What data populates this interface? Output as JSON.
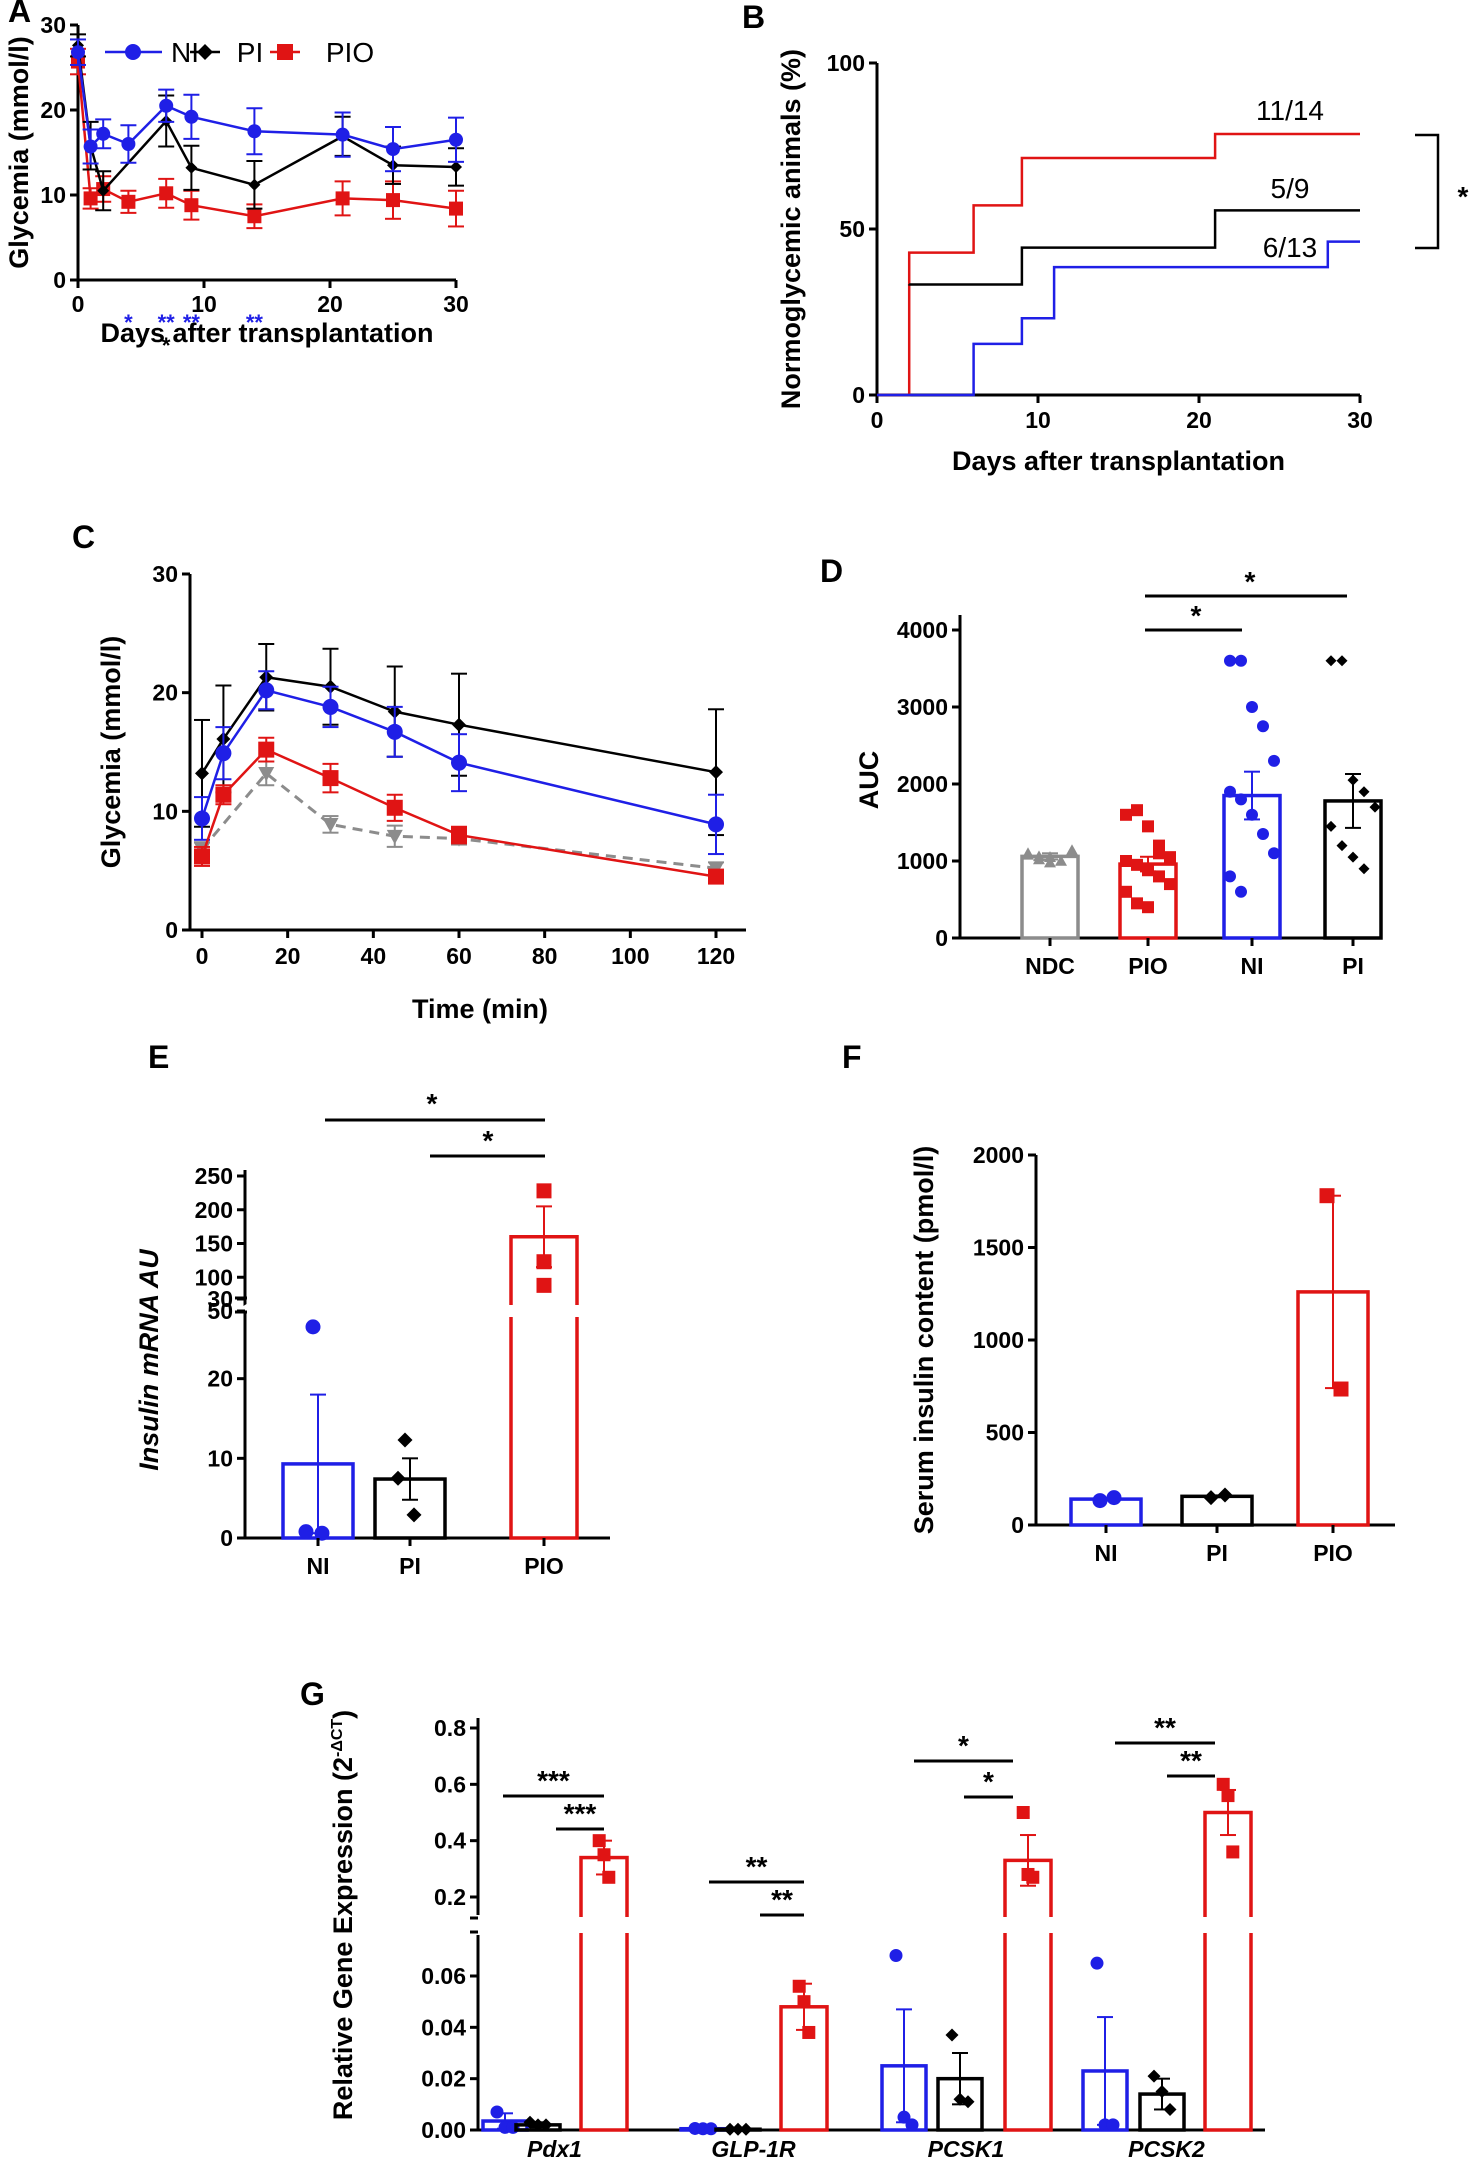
{
  "colors": {
    "NI": "#1f1fe6",
    "PI": "#000000",
    "PIO": "#e01414",
    "NDC": "#8c8c8c"
  },
  "chart_data": [
    {
      "id": "A",
      "panel_label": "A",
      "type": "line",
      "xlabel": "Days after transplantation",
      "ylabel": "Glycemia (mmol/l)",
      "xlim": [
        0,
        30
      ],
      "ylim": [
        0,
        30
      ],
      "xticks": [
        "0",
        "10",
        "20",
        "30"
      ],
      "yticks": [
        "0",
        "10",
        "20",
        "30"
      ],
      "series": [
        {
          "name": "NI",
          "color": "#1f1fe6",
          "marker": "circle",
          "x": [
            0,
            1,
            2,
            4,
            7,
            9,
            14,
            21,
            25,
            30
          ],
          "y": [
            26.8,
            15.7,
            17.2,
            16.0,
            20.5,
            19.2,
            17.5,
            17.1,
            15.4,
            16.5
          ],
          "err": [
            1.5,
            2.0,
            1.7,
            2.2,
            1.9,
            2.6,
            2.7,
            2.6,
            2.6,
            2.6
          ]
        },
        {
          "name": "PI",
          "color": "#000000",
          "marker": "diamond",
          "x": [
            0,
            1,
            2,
            7,
            9,
            14,
            21,
            25,
            30
          ],
          "y": [
            27.6,
            15.8,
            10.5,
            18.7,
            13.2,
            11.2,
            16.9,
            13.5,
            13.3
          ],
          "err": [
            1.3,
            2.8,
            2.3,
            3.0,
            2.6,
            2.8,
            2.3,
            2.2,
            2.2
          ]
        },
        {
          "name": "PIO",
          "color": "#e01414",
          "marker": "square",
          "x": [
            0,
            1,
            2,
            4,
            7,
            9,
            14,
            21,
            25,
            30
          ],
          "y": [
            25.7,
            9.6,
            10.7,
            9.2,
            10.2,
            8.8,
            7.5,
            9.6,
            9.4,
            8.4
          ],
          "err": [
            1.5,
            1.2,
            1.5,
            1.3,
            1.7,
            1.7,
            1.4,
            2.0,
            2.2,
            2.1
          ]
        }
      ],
      "annotations": [
        {
          "text": "*",
          "x": 4,
          "row": 1,
          "color": "#1f1fe6"
        },
        {
          "text": "**",
          "x": 7,
          "row": 1,
          "color": "#1f1fe6"
        },
        {
          "text": "**",
          "x": 9,
          "row": 1,
          "color": "#1f1fe6"
        },
        {
          "text": "**",
          "x": 14,
          "row": 1,
          "color": "#1f1fe6"
        },
        {
          "text": "*",
          "x": 7,
          "row": 2,
          "color": "#000000"
        }
      ],
      "legend": "top"
    },
    {
      "id": "B",
      "panel_label": "B",
      "type": "line",
      "xlabel": "Days after transplantation",
      "ylabel": "Normoglycemic animals (%)",
      "xlim": [
        0,
        30
      ],
      "ylim": [
        0,
        100
      ],
      "xticks": [
        "0",
        "10",
        "20",
        "30"
      ],
      "yticks": [
        "0",
        "50",
        "100"
      ],
      "series": [
        {
          "name": "PIO",
          "color": "#e01414",
          "label": "11/14",
          "x": [
            0,
            2,
            6,
            9,
            21,
            30
          ],
          "y": [
            0,
            42.9,
            57.1,
            71.4,
            78.6,
            78.6
          ]
        },
        {
          "name": "PI",
          "color": "#000000",
          "label": "5/9",
          "x": [
            2,
            9,
            21,
            30
          ],
          "y": [
            33.3,
            44.4,
            55.6,
            55.6
          ]
        },
        {
          "name": "NI",
          "color": "#1f1fe6",
          "label": "6/13",
          "x": [
            0,
            6,
            9,
            11,
            28,
            30
          ],
          "y": [
            0,
            15.4,
            23.1,
            38.5,
            46.2,
            46.2
          ]
        }
      ],
      "significance": "*"
    },
    {
      "id": "C",
      "panel_label": "C",
      "type": "line",
      "xlabel": "Time (min)",
      "ylabel": "Glycemia (mmol/l)",
      "xlim": [
        0,
        120
      ],
      "ylim": [
        0,
        30
      ],
      "xticks": [
        "0",
        "20",
        "40",
        "60",
        "80",
        "100",
        "120"
      ],
      "yticks": [
        "0",
        "10",
        "20",
        "30"
      ],
      "series": [
        {
          "group": "NDC",
          "color": "#8c8c8c",
          "marker": "triangle-down",
          "dashed": true,
          "x": [
            0,
            15,
            30,
            45,
            60,
            120
          ],
          "y": [
            6.8,
            13.2,
            8.9,
            7.9,
            7.7,
            5.2
          ],
          "err": [
            0.6,
            1.0,
            0.7,
            0.9,
            0.5,
            0.5
          ]
        },
        {
          "group": "PI",
          "color": "#000000",
          "marker": "diamond",
          "x": [
            0,
            5,
            15,
            30,
            45,
            60,
            120
          ],
          "y": [
            13.2,
            16.1,
            21.3,
            20.5,
            18.4,
            17.3,
            13.3
          ],
          "err": [
            4.5,
            4.5,
            2.8,
            3.2,
            3.8,
            4.3,
            5.3
          ]
        },
        {
          "group": "NI",
          "color": "#1f1fe6",
          "marker": "circle",
          "x": [
            0,
            5,
            15,
            30,
            45,
            60,
            120
          ],
          "y": [
            9.4,
            14.9,
            20.2,
            18.8,
            16.7,
            14.1,
            8.9
          ],
          "err": [
            1.8,
            2.2,
            1.6,
            1.7,
            2.1,
            2.4,
            2.5
          ]
        },
        {
          "group": "PIO",
          "color": "#e01414",
          "marker": "square",
          "x": [
            0,
            5,
            15,
            30,
            45,
            60,
            120
          ],
          "y": [
            6.2,
            11.4,
            15.2,
            12.8,
            10.3,
            8.0,
            4.5
          ],
          "err": [
            0.8,
            0.8,
            1.0,
            1.2,
            1.1,
            0.7,
            0.4
          ]
        }
      ]
    },
    {
      "id": "D",
      "panel_label": "D",
      "type": "bar",
      "xlabel": "",
      "ylabel": "AUC",
      "ylim": [
        0,
        4000
      ],
      "yticks": [
        "0",
        "1000",
        "2000",
        "3000",
        "4000"
      ],
      "categories": [
        "NDC",
        "PIO",
        "NI",
        "PI"
      ],
      "bar_colors": [
        "#8c8c8c",
        "#e01414",
        "#1f1fe6",
        "#000000"
      ],
      "markers": [
        "triangle-up",
        "square",
        "circle",
        "diamond"
      ],
      "values": [
        1060,
        960,
        1850,
        1780
      ],
      "sem": [
        40,
        95,
        310,
        350
      ],
      "points": [
        [
          1100,
          1060,
          980,
          1000,
          1140,
          1080,
          1020,
          1050
        ],
        [
          1600,
          1660,
          1450,
          1200,
          1050,
          1000,
          950,
          880,
          800,
          700,
          600,
          450,
          400,
          1100
        ],
        [
          3600,
          3600,
          3000,
          2750,
          2300,
          1900,
          1800,
          1600,
          1350,
          1100,
          800,
          600
        ],
        [
          3600,
          3600,
          2050,
          1900,
          1700,
          1450,
          1200,
          1050,
          900
        ]
      ],
      "brackets": [
        {
          "from": 1,
          "to": 2,
          "text": "*",
          "y": 4000
        },
        {
          "from": 1,
          "to": 3,
          "text": "*",
          "y": 4440
        }
      ]
    },
    {
      "id": "E",
      "panel_label": "E",
      "type": "bar",
      "xlabel": "",
      "ylabel": "Insulin mRNA AU",
      "y_axis_break": [
        30,
        50
      ],
      "ylim": [
        0,
        250
      ],
      "yticks": [
        "0",
        "10",
        "20",
        "30",
        "50",
        "100",
        "150",
        "200",
        "250"
      ],
      "categories": [
        "NI",
        "PI",
        "PIO"
      ],
      "bar_colors": [
        "#1f1fe6",
        "#000000",
        "#e01414"
      ],
      "markers": [
        "circle",
        "diamond",
        "square"
      ],
      "values": [
        9.3,
        7.4,
        160
      ],
      "sem": [
        8.7,
        2.6,
        45
      ],
      "points": [
        [
          26.5,
          0.8,
          0.6
        ],
        [
          12.3,
          7.5,
          2.9
        ],
        [
          228,
          123,
          88
        ]
      ],
      "brackets": [
        {
          "from": 0,
          "to": 2,
          "text": "*",
          "row": 2
        },
        {
          "from": 1,
          "to": 2,
          "text": "*",
          "row": 1
        }
      ]
    },
    {
      "id": "F",
      "panel_label": "F",
      "type": "bar",
      "xlabel": "",
      "ylabel": "Serum insulin content (pmol/l)",
      "ylim": [
        0,
        2000
      ],
      "yticks": [
        "0",
        "500",
        "1000",
        "1500",
        "2000"
      ],
      "categories": [
        "NI",
        "PI",
        "PIO"
      ],
      "bar_colors": [
        "#1f1fe6",
        "#000000",
        "#e01414"
      ],
      "markers": [
        "circle",
        "diamond",
        "square"
      ],
      "values": [
        140,
        155,
        1260
      ],
      "sem": [
        5,
        5,
        520
      ],
      "points": [
        [
          132,
          148
        ],
        [
          148,
          162
        ],
        [
          1780,
          735
        ]
      ]
    },
    {
      "id": "G",
      "panel_label": "G",
      "type": "bar",
      "xlabel": "",
      "ylabel_main": "Relative Gene Expression (2",
      "ylabel_sup": "-ΔCT",
      "ylabel_end": ")",
      "y_axis_break": [
        0.07,
        0.15
      ],
      "yticks_lower": [
        "0.00",
        "0.02",
        "0.04",
        "0.06"
      ],
      "yticks_upper": [
        "0.2",
        "0.4",
        "0.6",
        "0.8"
      ],
      "categories": [
        "Pdx1",
        "GLP-1R",
        "PCSK1",
        "PCSK2"
      ],
      "group_order": [
        "NI",
        "PI",
        "PIO"
      ],
      "bar_colors": [
        "#1f1fe6",
        "#000000",
        "#e01414"
      ],
      "markers": [
        "circle",
        "diamond",
        "square"
      ],
      "values": [
        [
          0.0035,
          0.002,
          0.34
        ],
        [
          0.0005,
          0.0003,
          0.048
        ],
        [
          0.025,
          0.02,
          0.33
        ],
        [
          0.023,
          0.014,
          0.5
        ]
      ],
      "sem": [
        [
          0.003,
          0.001,
          0.06
        ],
        [
          0.0002,
          0.0001,
          0.009
        ],
        [
          0.022,
          0.01,
          0.09
        ],
        [
          0.021,
          0.006,
          0.08
        ]
      ],
      "points": [
        [
          [
            0.007,
            0.001,
            0.001
          ],
          [
            0.003,
            0.002,
            0.002
          ],
          [
            0.4,
            0.35,
            0.27
          ]
        ],
        [
          [
            0.0006,
            0.0005,
            0.0005
          ],
          [
            0.0003,
            0.0003,
            0.0003
          ],
          [
            0.056,
            0.05,
            0.038
          ]
        ],
        [
          [
            0.068,
            0.005,
            0.002
          ],
          [
            0.037,
            0.012,
            0.011
          ],
          [
            0.5,
            0.28,
            0.27
          ]
        ],
        [
          [
            0.065,
            0.002,
            0.002
          ],
          [
            0.021,
            0.015,
            0.008
          ],
          [
            0.6,
            0.56,
            0.36
          ]
        ]
      ],
      "brackets": [
        {
          "group": 0,
          "text": "***",
          "from": 0,
          "to": 2,
          "row": 2
        },
        {
          "group": 0,
          "text": "***",
          "from": 1,
          "to": 2,
          "row": 1
        },
        {
          "group": 1,
          "text": "**",
          "from": 0,
          "to": 2,
          "row": 2
        },
        {
          "group": 1,
          "text": "**",
          "from": 1,
          "to": 2,
          "row": 1
        },
        {
          "group": 2,
          "text": "*",
          "from": 0,
          "to": 2,
          "row": 2
        },
        {
          "group": 2,
          "text": "*",
          "from": 1,
          "to": 2,
          "row": 1
        },
        {
          "group": 3,
          "text": "**",
          "from": 0,
          "to": 2,
          "row": 2
        },
        {
          "group": 3,
          "text": "**",
          "from": 1,
          "to": 2,
          "row": 1
        }
      ]
    }
  ]
}
